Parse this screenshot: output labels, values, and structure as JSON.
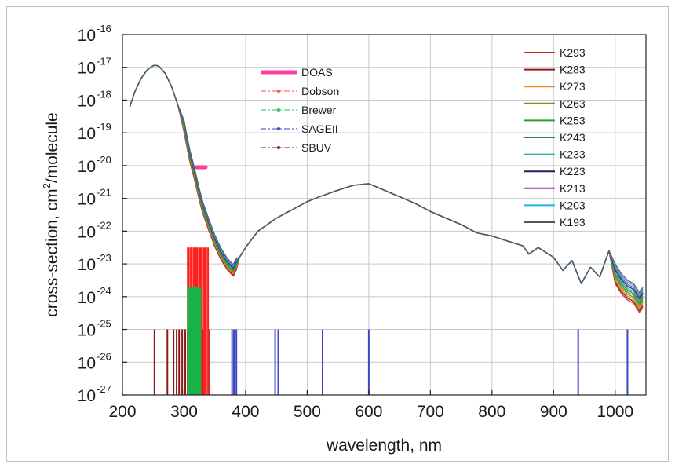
{
  "chart_data": {
    "type": "line",
    "xlabel": "wavelength, nm",
    "ylabel": "cross-section, cm² /molecule",
    "ylabel_parts": {
      "pre": "cross-section, cm",
      "sup": "2",
      "post": "/molecule"
    },
    "xlim": [
      200,
      1050
    ],
    "ylim_log10": [
      -27,
      -16
    ],
    "yscale": "log",
    "grid": true,
    "x_ticks": [
      200,
      300,
      400,
      500,
      600,
      700,
      800,
      900,
      1000
    ],
    "y_ticks": [
      {
        "base": "10",
        "exp": "-16"
      },
      {
        "base": "10",
        "exp": "-17"
      },
      {
        "base": "10",
        "exp": "-18"
      },
      {
        "base": "10",
        "exp": "-19"
      },
      {
        "base": "10",
        "exp": "-20"
      },
      {
        "base": "10",
        "exp": "-21"
      },
      {
        "base": "10",
        "exp": "-22"
      },
      {
        "base": "10",
        "exp": "-23"
      },
      {
        "base": "10",
        "exp": "-24"
      },
      {
        "base": "10",
        "exp": "-25"
      },
      {
        "base": "10",
        "exp": "-26"
      },
      {
        "base": "10",
        "exp": "-27"
      }
    ],
    "cross_section_x": [
      212,
      220,
      230,
      240,
      250,
      255,
      260,
      270,
      280,
      290,
      300,
      305,
      310,
      315,
      320,
      325,
      330,
      340,
      350,
      360,
      370,
      380,
      385,
      390,
      400,
      420,
      450,
      480,
      500,
      520,
      550,
      575,
      600,
      625,
      650,
      675,
      700,
      725,
      750,
      775,
      800,
      825,
      850,
      860,
      875,
      900,
      915,
      930,
      945,
      960,
      975,
      990,
      1000,
      1010,
      1020,
      1030,
      1040,
      1045
    ],
    "cross_section_log10": [
      -18.2,
      -17.75,
      -17.35,
      -17.08,
      -16.95,
      -16.94,
      -16.98,
      -17.2,
      -17.6,
      -18.15,
      -18.8,
      -19.3,
      -19.75,
      -20.1,
      -20.5,
      -20.9,
      -21.25,
      -21.8,
      -22.3,
      -22.7,
      -23.0,
      -23.2,
      -23.0,
      -22.8,
      -22.5,
      -22.0,
      -21.6,
      -21.3,
      -21.1,
      -20.95,
      -20.75,
      -20.6,
      -20.55,
      -20.75,
      -20.95,
      -21.15,
      -21.4,
      -21.6,
      -21.8,
      -22.05,
      -22.15,
      -22.3,
      -22.45,
      -22.7,
      -22.5,
      -22.8,
      -23.2,
      -22.9,
      -23.6,
      -23.1,
      -23.4,
      -22.6,
      -23.3,
      -23.6,
      -23.8,
      -23.9,
      -24.2,
      -24.0
    ],
    "series": [
      {
        "name": "K293",
        "color": "#cc2a27"
      },
      {
        "name": "K283",
        "color": "#9c1414"
      },
      {
        "name": "K273",
        "color": "#f08a24"
      },
      {
        "name": "K263",
        "color": "#8c8c1a"
      },
      {
        "name": "K253",
        "color": "#2aa02a"
      },
      {
        "name": "K243",
        "color": "#1c8a4c"
      },
      {
        "name": "K233",
        "color": "#2bb3a8"
      },
      {
        "name": "K223",
        "color": "#1f1f5c"
      },
      {
        "name": "K213",
        "color": "#8e3fb3"
      },
      {
        "name": "K203",
        "color": "#19b6e0"
      },
      {
        "name": "K193",
        "color": "#555555"
      }
    ],
    "instrument_legend": [
      {
        "name": "DOAS",
        "color": "#ff3fa0",
        "style": "thick"
      },
      {
        "name": "Dobson",
        "color": "#ff5050",
        "style": "dash-dot"
      },
      {
        "name": "Brewer",
        "color": "#22c36a",
        "style": "dash-dot"
      },
      {
        "name": "SAGEII",
        "color": "#3b46c4",
        "style": "dash-dot"
      },
      {
        "name": "SBUV",
        "color": "#8b1a1a",
        "style": "dash-dot"
      }
    ],
    "doas_band": {
      "x": [
        320,
        335
      ],
      "log10": -20.05
    },
    "dobson_lines": {
      "x": [
        306,
        308,
        311,
        313,
        316,
        318,
        320,
        322,
        325,
        327,
        329,
        332,
        334,
        336,
        339
      ],
      "top_log10": -22.5,
      "color": "#ff2020"
    },
    "brewer_lines": {
      "x": [
        307,
        310,
        313,
        316,
        317,
        320,
        323,
        326
      ],
      "top_log10": -23.7,
      "color": "#18b24a"
    },
    "sageii_lines": {
      "x": [
        378,
        381,
        385,
        448,
        453,
        525,
        600,
        940,
        1020
      ],
      "top_log10": -25.0,
      "color": "#3b46c4"
    },
    "sbuv_lines": {
      "x": [
        252,
        273,
        283,
        288,
        292,
        297,
        302,
        306,
        313,
        318,
        331,
        340
      ],
      "top_log10": -25.0,
      "color": "#8b1a1a"
    }
  }
}
